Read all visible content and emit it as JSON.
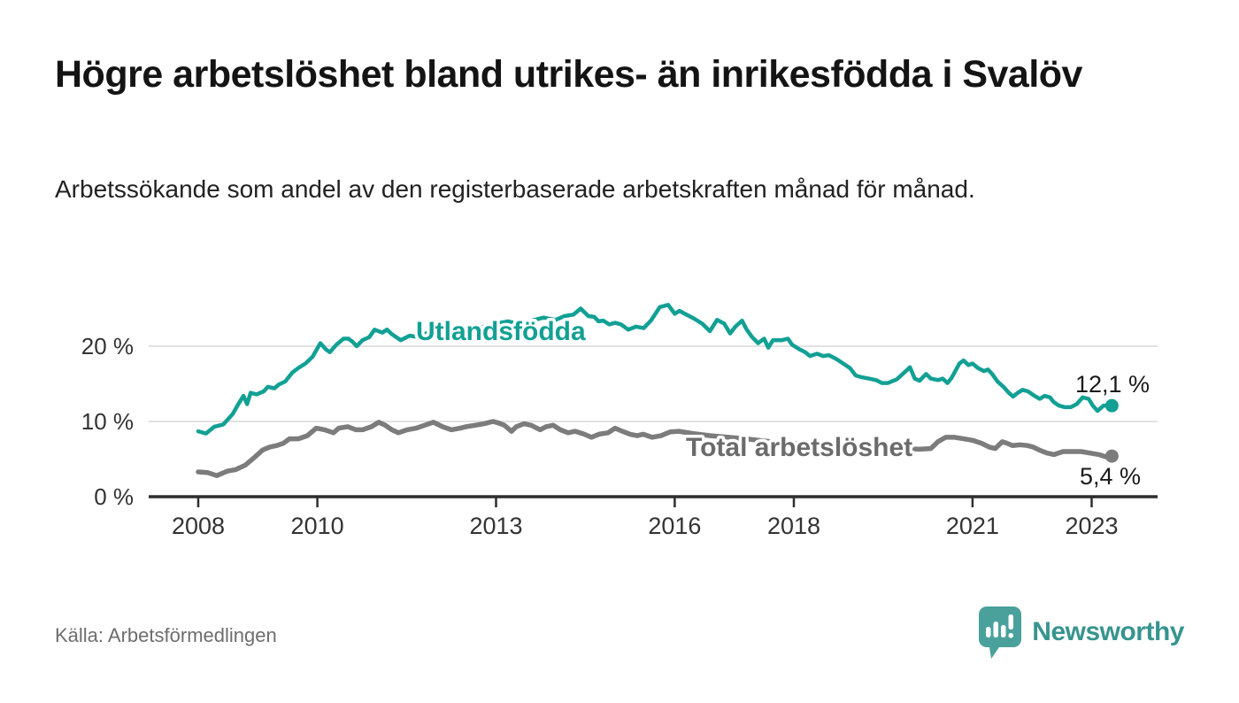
{
  "header": {
    "title": "Högre arbetslöshet bland utrikes- än inrikesfödda i Svalöv",
    "subtitle": "Arbetssökande som andel av den registerbaserade arbetskraften månad för månad."
  },
  "footer": {
    "source": "Källa: Arbetsförmedlingen",
    "brand": "Newsworthy"
  },
  "colors": {
    "accent_teal": "#12a094",
    "series_gray": "#7c7c7c",
    "series_label_gray": "#6b6b6b",
    "text_dark": "#1a1a1a",
    "grid": "#d9d9d9",
    "axis": "#2e2e2e",
    "logo_teal": "#4aa09b"
  },
  "chart_data": {
    "type": "line",
    "title": "Högre arbetslöshet bland utrikes- än inrikesfödda i Svalöv",
    "subtitle": "Arbetssökande som andel av den registerbaserade arbetskraften månad för månad.",
    "xlabel": "",
    "ylabel": "",
    "x_domain": [
      2007.2,
      2024.1
    ],
    "y_domain": [
      0,
      26
    ],
    "grid": "horizontal-only",
    "x_ticks": [
      {
        "value": 2008,
        "label": "2008"
      },
      {
        "value": 2010,
        "label": "2010"
      },
      {
        "value": 2013,
        "label": "2013"
      },
      {
        "value": 2016,
        "label": "2016"
      },
      {
        "value": 2018,
        "label": "2018"
      },
      {
        "value": 2021,
        "label": "2021"
      },
      {
        "value": 2023,
        "label": "2023"
      }
    ],
    "y_ticks": [
      {
        "value": 0,
        "label": "0 %"
      },
      {
        "value": 10,
        "label": "10 %"
      },
      {
        "value": 20,
        "label": "20 %"
      }
    ],
    "series": [
      {
        "name": "Utlandsfödda",
        "color": "#12a094",
        "end_value": 12.1,
        "end_label": "12,1 %",
        "points": [
          [
            2008.0,
            8.7
          ],
          [
            2008.13,
            8.4
          ],
          [
            2008.27,
            9.3
          ],
          [
            2008.42,
            9.6
          ],
          [
            2008.58,
            11.0
          ],
          [
            2008.68,
            12.4
          ],
          [
            2008.76,
            13.4
          ],
          [
            2008.82,
            12.3
          ],
          [
            2008.88,
            13.8
          ],
          [
            2008.98,
            13.6
          ],
          [
            2009.1,
            14.0
          ],
          [
            2009.17,
            14.6
          ],
          [
            2009.28,
            14.4
          ],
          [
            2009.35,
            14.9
          ],
          [
            2009.46,
            15.3
          ],
          [
            2009.58,
            16.5
          ],
          [
            2009.68,
            17.1
          ],
          [
            2009.8,
            17.7
          ],
          [
            2009.92,
            18.6
          ],
          [
            2010.05,
            20.4
          ],
          [
            2010.14,
            19.6
          ],
          [
            2010.21,
            19.2
          ],
          [
            2010.32,
            20.2
          ],
          [
            2010.44,
            21.0
          ],
          [
            2010.52,
            21.0
          ],
          [
            2010.59,
            20.6
          ],
          [
            2010.66,
            20.0
          ],
          [
            2010.76,
            20.8
          ],
          [
            2010.87,
            21.2
          ],
          [
            2010.96,
            22.2
          ],
          [
            2011.09,
            21.8
          ],
          [
            2011.17,
            22.2
          ],
          [
            2011.25,
            21.6
          ],
          [
            2011.4,
            20.8
          ],
          [
            2011.55,
            21.4
          ],
          [
            2011.7,
            21.2
          ],
          [
            2011.85,
            21.8
          ],
          [
            2012.0,
            22.0
          ],
          [
            2012.2,
            21.7
          ],
          [
            2012.4,
            22.3
          ],
          [
            2012.6,
            22.0
          ],
          [
            2012.8,
            22.6
          ],
          [
            2013.0,
            23.0
          ],
          [
            2013.2,
            23.3
          ],
          [
            2013.4,
            22.9
          ],
          [
            2013.6,
            23.4
          ],
          [
            2013.8,
            23.8
          ],
          [
            2014.0,
            23.5
          ],
          [
            2014.15,
            24.0
          ],
          [
            2014.3,
            24.2
          ],
          [
            2014.42,
            25.0
          ],
          [
            2014.55,
            24.0
          ],
          [
            2014.65,
            23.9
          ],
          [
            2014.72,
            23.3
          ],
          [
            2014.8,
            23.4
          ],
          [
            2014.9,
            22.9
          ],
          [
            2015.0,
            23.1
          ],
          [
            2015.1,
            22.9
          ],
          [
            2015.22,
            22.2
          ],
          [
            2015.35,
            22.6
          ],
          [
            2015.48,
            22.4
          ],
          [
            2015.6,
            23.4
          ],
          [
            2015.75,
            25.2
          ],
          [
            2015.89,
            25.5
          ],
          [
            2016.0,
            24.3
          ],
          [
            2016.08,
            24.7
          ],
          [
            2016.17,
            24.3
          ],
          [
            2016.32,
            23.7
          ],
          [
            2016.46,
            23.0
          ],
          [
            2016.59,
            22.0
          ],
          [
            2016.71,
            23.5
          ],
          [
            2016.83,
            23.0
          ],
          [
            2016.93,
            21.7
          ],
          [
            2017.02,
            22.6
          ],
          [
            2017.13,
            23.4
          ],
          [
            2017.21,
            22.2
          ],
          [
            2017.3,
            21.2
          ],
          [
            2017.4,
            20.4
          ],
          [
            2017.5,
            21.0
          ],
          [
            2017.57,
            19.8
          ],
          [
            2017.65,
            20.8
          ],
          [
            2017.8,
            20.8
          ],
          [
            2017.9,
            21.0
          ],
          [
            2017.97,
            20.2
          ],
          [
            2018.09,
            19.6
          ],
          [
            2018.19,
            19.2
          ],
          [
            2018.27,
            18.7
          ],
          [
            2018.39,
            19.0
          ],
          [
            2018.49,
            18.7
          ],
          [
            2018.59,
            18.8
          ],
          [
            2018.71,
            18.3
          ],
          [
            2018.79,
            17.9
          ],
          [
            2018.94,
            17.1
          ],
          [
            2019.04,
            16.1
          ],
          [
            2019.13,
            15.9
          ],
          [
            2019.26,
            15.7
          ],
          [
            2019.38,
            15.5
          ],
          [
            2019.48,
            15.1
          ],
          [
            2019.58,
            15.1
          ],
          [
            2019.73,
            15.6
          ],
          [
            2019.88,
            16.7
          ],
          [
            2019.95,
            17.2
          ],
          [
            2020.03,
            15.7
          ],
          [
            2020.11,
            15.4
          ],
          [
            2020.22,
            16.3
          ],
          [
            2020.3,
            15.7
          ],
          [
            2020.42,
            15.5
          ],
          [
            2020.5,
            15.7
          ],
          [
            2020.58,
            15.1
          ],
          [
            2020.65,
            15.8
          ],
          [
            2020.78,
            17.7
          ],
          [
            2020.85,
            18.1
          ],
          [
            2020.93,
            17.5
          ],
          [
            2021.0,
            17.7
          ],
          [
            2021.09,
            17.1
          ],
          [
            2021.19,
            16.7
          ],
          [
            2021.26,
            16.9
          ],
          [
            2021.33,
            16.3
          ],
          [
            2021.42,
            15.3
          ],
          [
            2021.52,
            14.6
          ],
          [
            2021.61,
            13.8
          ],
          [
            2021.68,
            13.3
          ],
          [
            2021.76,
            13.8
          ],
          [
            2021.84,
            14.2
          ],
          [
            2021.93,
            14.0
          ],
          [
            2022.04,
            13.4
          ],
          [
            2022.13,
            13.0
          ],
          [
            2022.21,
            13.4
          ],
          [
            2022.3,
            13.2
          ],
          [
            2022.36,
            12.6
          ],
          [
            2022.45,
            12.1
          ],
          [
            2022.55,
            11.9
          ],
          [
            2022.65,
            11.9
          ],
          [
            2022.75,
            12.3
          ],
          [
            2022.85,
            13.2
          ],
          [
            2022.95,
            13.0
          ],
          [
            2023.02,
            12.1
          ],
          [
            2023.1,
            11.4
          ],
          [
            2023.2,
            12.1
          ],
          [
            2023.34,
            12.1
          ]
        ]
      },
      {
        "name": "Total arbetslöshet",
        "color": "#7c7c7c",
        "end_value": 5.4,
        "end_label": "5,4 %",
        "points": [
          [
            2008.0,
            3.3
          ],
          [
            2008.16,
            3.2
          ],
          [
            2008.31,
            2.8
          ],
          [
            2008.49,
            3.4
          ],
          [
            2008.63,
            3.6
          ],
          [
            2008.79,
            4.2
          ],
          [
            2008.94,
            5.2
          ],
          [
            2009.08,
            6.2
          ],
          [
            2009.2,
            6.6
          ],
          [
            2009.32,
            6.8
          ],
          [
            2009.43,
            7.1
          ],
          [
            2009.53,
            7.7
          ],
          [
            2009.68,
            7.7
          ],
          [
            2009.83,
            8.1
          ],
          [
            2009.98,
            9.1
          ],
          [
            2010.12,
            8.9
          ],
          [
            2010.27,
            8.5
          ],
          [
            2010.36,
            9.1
          ],
          [
            2010.51,
            9.3
          ],
          [
            2010.65,
            8.9
          ],
          [
            2010.76,
            8.9
          ],
          [
            2010.91,
            9.3
          ],
          [
            2011.03,
            9.9
          ],
          [
            2011.14,
            9.5
          ],
          [
            2011.25,
            8.9
          ],
          [
            2011.36,
            8.5
          ],
          [
            2011.51,
            8.9
          ],
          [
            2011.66,
            9.1
          ],
          [
            2011.8,
            9.5
          ],
          [
            2011.95,
            9.9
          ],
          [
            2012.1,
            9.3
          ],
          [
            2012.25,
            8.9
          ],
          [
            2012.4,
            9.1
          ],
          [
            2012.5,
            9.3
          ],
          [
            2012.65,
            9.5
          ],
          [
            2012.8,
            9.7
          ],
          [
            2012.95,
            10.0
          ],
          [
            2013.04,
            9.8
          ],
          [
            2013.14,
            9.5
          ],
          [
            2013.26,
            8.7
          ],
          [
            2013.34,
            9.3
          ],
          [
            2013.47,
            9.7
          ],
          [
            2013.59,
            9.5
          ],
          [
            2013.74,
            8.9
          ],
          [
            2013.84,
            9.3
          ],
          [
            2013.96,
            9.5
          ],
          [
            2014.08,
            8.9
          ],
          [
            2014.21,
            8.5
          ],
          [
            2014.33,
            8.7
          ],
          [
            2014.48,
            8.3
          ],
          [
            2014.6,
            7.9
          ],
          [
            2014.73,
            8.3
          ],
          [
            2014.88,
            8.5
          ],
          [
            2015.0,
            9.1
          ],
          [
            2015.12,
            8.7
          ],
          [
            2015.25,
            8.3
          ],
          [
            2015.37,
            8.1
          ],
          [
            2015.47,
            8.3
          ],
          [
            2015.62,
            7.9
          ],
          [
            2015.77,
            8.1
          ],
          [
            2015.92,
            8.6
          ],
          [
            2016.07,
            8.7
          ],
          [
            2016.3,
            8.4
          ],
          [
            2016.6,
            8.1
          ],
          [
            2016.9,
            7.9
          ],
          [
            2017.2,
            7.7
          ],
          [
            2017.5,
            7.4
          ],
          [
            2017.8,
            7.2
          ],
          [
            2018.1,
            7.0
          ],
          [
            2018.4,
            7.1
          ],
          [
            2018.7,
            6.9
          ],
          [
            2019.0,
            6.7
          ],
          [
            2019.3,
            6.6
          ],
          [
            2019.6,
            6.5
          ],
          [
            2019.9,
            6.4
          ],
          [
            2020.1,
            6.3
          ],
          [
            2020.3,
            6.4
          ],
          [
            2020.42,
            7.3
          ],
          [
            2020.55,
            7.9
          ],
          [
            2020.7,
            7.9
          ],
          [
            2020.85,
            7.7
          ],
          [
            2021.0,
            7.5
          ],
          [
            2021.15,
            7.1
          ],
          [
            2021.28,
            6.6
          ],
          [
            2021.38,
            6.4
          ],
          [
            2021.5,
            7.3
          ],
          [
            2021.58,
            7.1
          ],
          [
            2021.67,
            6.8
          ],
          [
            2021.8,
            6.9
          ],
          [
            2021.92,
            6.8
          ],
          [
            2022.02,
            6.6
          ],
          [
            2022.12,
            6.2
          ],
          [
            2022.25,
            5.8
          ],
          [
            2022.37,
            5.6
          ],
          [
            2022.52,
            6.0
          ],
          [
            2022.67,
            6.0
          ],
          [
            2022.82,
            6.0
          ],
          [
            2022.97,
            5.8
          ],
          [
            2023.12,
            5.6
          ],
          [
            2023.24,
            5.3
          ],
          [
            2023.34,
            5.4
          ]
        ]
      }
    ],
    "legend_position": "inline-labels-on-lines"
  }
}
